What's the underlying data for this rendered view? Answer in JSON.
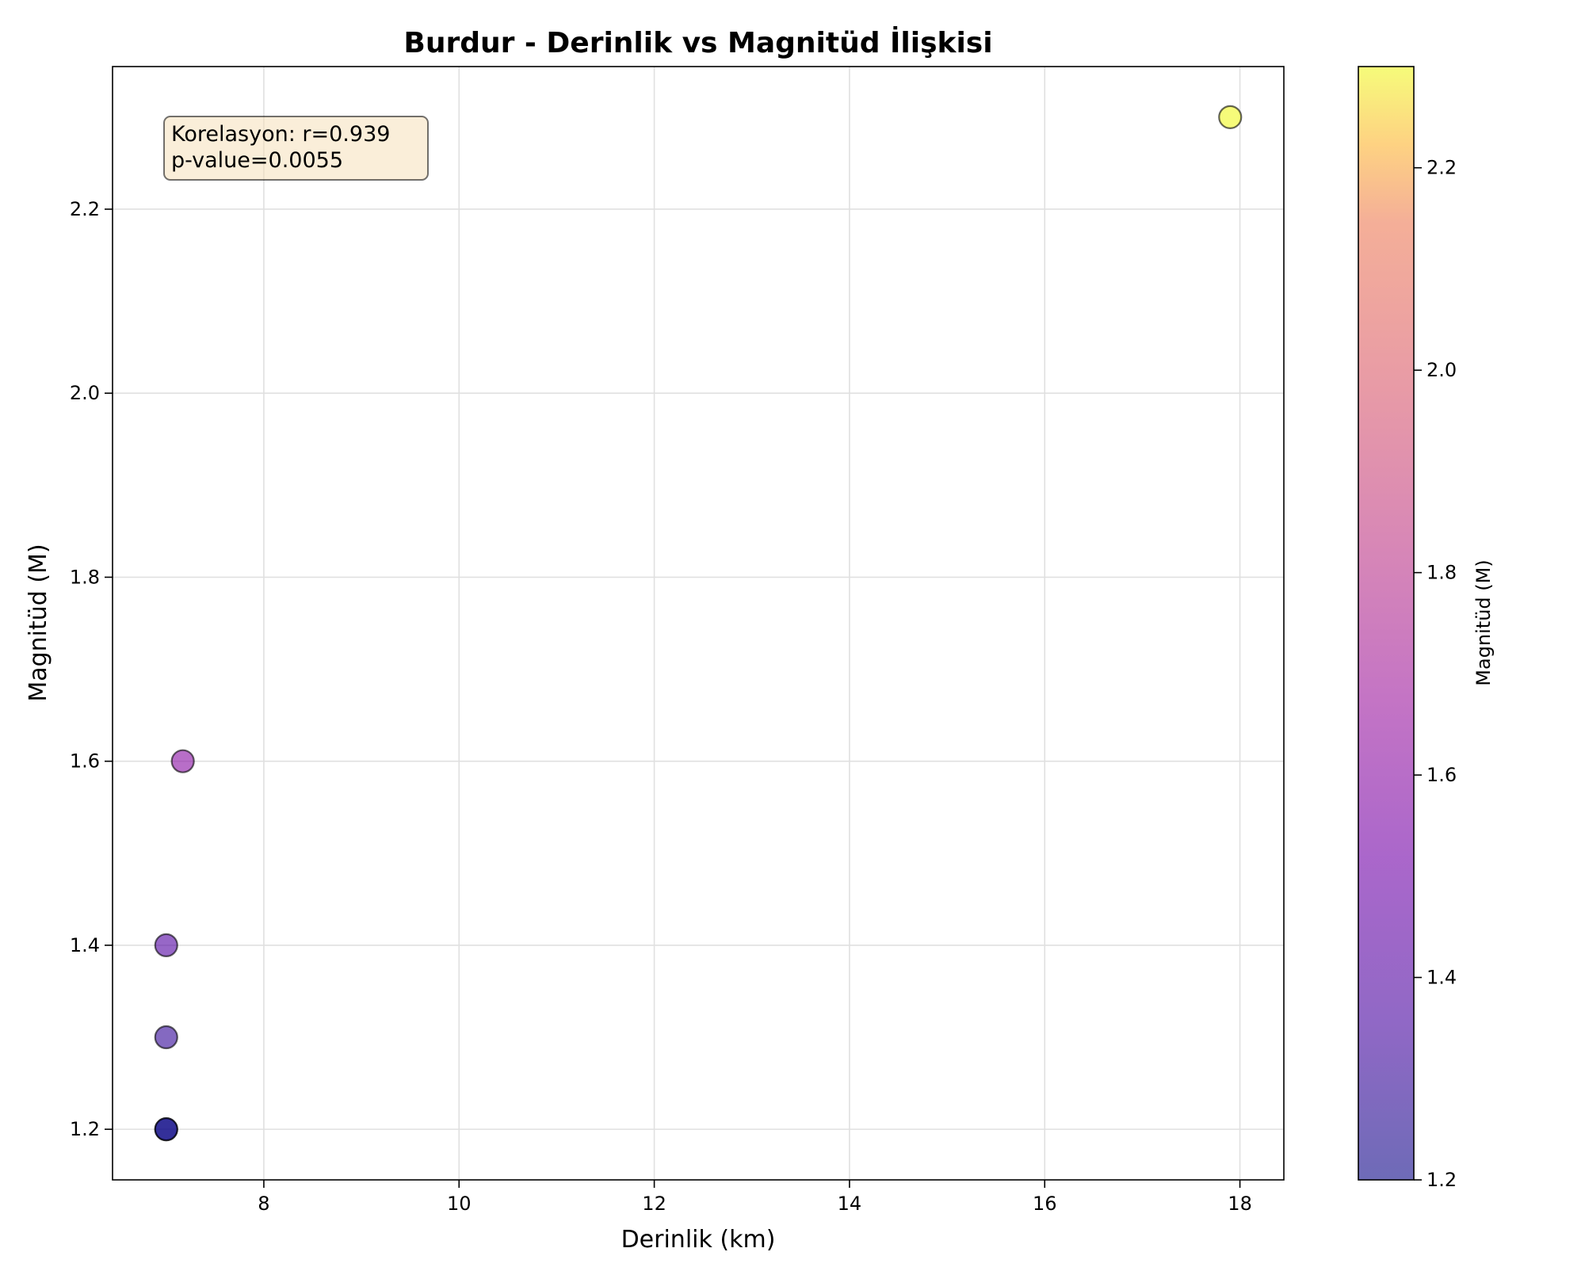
{
  "chart_data": {
    "type": "scatter",
    "title": "Burdur - Derinlik vs Magnitüd İlişkisi",
    "xlabel": "Derinlik (km)",
    "ylabel": "Magnitüd (M)",
    "xlim": [
      6.45,
      18.45
    ],
    "ylim": [
      1.145,
      2.355
    ],
    "xticks": [
      8,
      10,
      12,
      14,
      16,
      18
    ],
    "yticks": [
      1.2,
      1.4,
      1.6,
      1.8,
      2.0,
      2.2
    ],
    "xtick_labels": [
      "8",
      "10",
      "12",
      "14",
      "16",
      "18"
    ],
    "ytick_labels": [
      "1.2",
      "1.4",
      "1.6",
      "1.8",
      "2.0",
      "2.2"
    ],
    "grid": true,
    "points": [
      {
        "x": 7.0,
        "y": 1.2
      },
      {
        "x": 7.0,
        "y": 1.2
      },
      {
        "x": 7.0,
        "y": 1.3
      },
      {
        "x": 7.0,
        "y": 1.4
      },
      {
        "x": 7.17,
        "y": 1.6
      },
      {
        "x": 17.9,
        "y": 2.3
      }
    ],
    "annotation": {
      "line1": "Korelasyon: r=0.939",
      "line2": "p-value=0.0055"
    },
    "colorbar": {
      "label": "Magnitüd (M)",
      "colormap": "plasma",
      "range": [
        1.2,
        2.3
      ],
      "ticks": [
        1.2,
        1.4,
        1.6,
        1.8,
        2.0,
        2.2
      ],
      "tick_labels": [
        "1.2",
        "1.4",
        "1.6",
        "1.8",
        "2.0",
        "2.2"
      ]
    },
    "colors": {
      "grid": "#e0e0e0",
      "marker_edge": "#000000",
      "annotation_fill": "#f5deb3",
      "annotation_edge": "#666666"
    }
  }
}
